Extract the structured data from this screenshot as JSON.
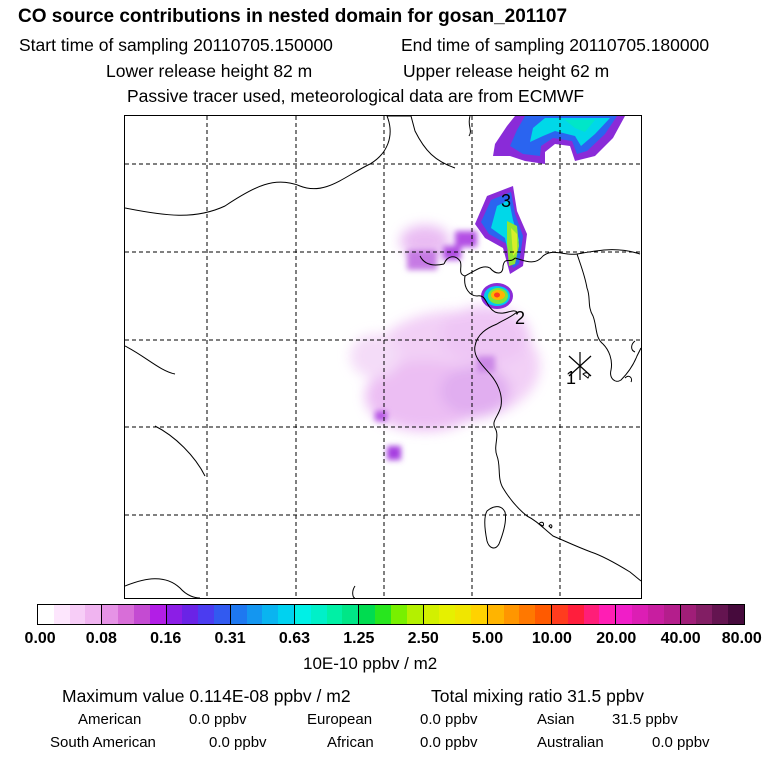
{
  "header": {
    "title": "CO  source contributions in nested domain for gosan_201107",
    "start_time": "Start time of sampling 20110705.150000",
    "end_time": "End time of sampling 20110705.180000",
    "lower_height": "Lower release height   82 m",
    "upper_height": "Upper release height   62 m",
    "tracer_note": "Passive tracer used, meteorological data are from ECMWF"
  },
  "map": {
    "markers": [
      {
        "label": "1",
        "description": "receptor star marker"
      },
      {
        "label": "2"
      },
      {
        "label": "3"
      }
    ]
  },
  "colorbar": {
    "ticks": [
      "0.00",
      "0.08",
      "0.16",
      "0.31",
      "0.63",
      "1.25",
      "2.50",
      "5.00",
      "10.00",
      "20.00",
      "40.00",
      "80.00"
    ],
    "unit": "10E-10 ppbv / m2",
    "colors": [
      "#ffffff",
      "#fde6fd",
      "#f7cdf7",
      "#f0b4f0",
      "#e693e6",
      "#d86ed8",
      "#c44bd2",
      "#b21ee6",
      "#8c1ee6",
      "#6a23e6",
      "#4b3cf0",
      "#325af0",
      "#1e78f0",
      "#1496f0",
      "#0ab4f0",
      "#00d2f0",
      "#00f0e6",
      "#00f0c8",
      "#00f0a5",
      "#00e687",
      "#00dc50",
      "#28e61e",
      "#78f000",
      "#b4f000",
      "#d2f000",
      "#e6f000",
      "#f0e600",
      "#ffd200",
      "#ffb400",
      "#ff9600",
      "#ff7800",
      "#ff5a00",
      "#ff3c1e",
      "#ff1e3c",
      "#ff1e78",
      "#ff1eb4",
      "#f01ec8",
      "#dc1eb4",
      "#c81ea0",
      "#b41e8c",
      "#a01e78",
      "#821e64",
      "#641450",
      "#460a3c"
    ]
  },
  "stats": {
    "max_value": "Maximum value  0.114E-08 ppbv / m2",
    "total_mixing": "Total mixing ratio       31.5 ppbv",
    "regions": [
      {
        "name": "American",
        "value": "0.0 ppbv"
      },
      {
        "name": "European",
        "value": "0.0 ppbv"
      },
      {
        "name": "Asian",
        "value": "31.5 ppbv"
      },
      {
        "name": "South American",
        "value": "0.0 ppbv"
      },
      {
        "name": "African",
        "value": "0.0 ppbv"
      },
      {
        "name": "Australian",
        "value": "0.0 ppbv"
      }
    ]
  }
}
